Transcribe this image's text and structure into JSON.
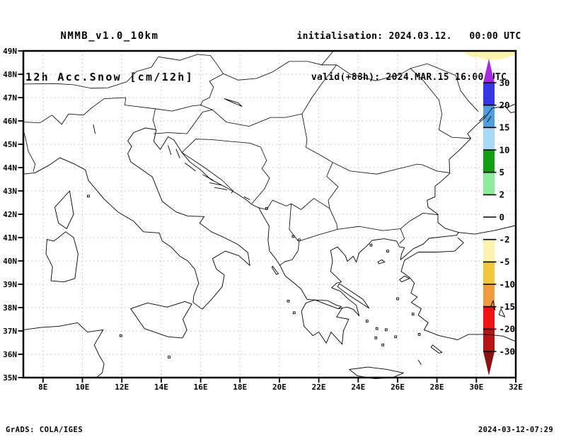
{
  "header": {
    "model_line": "NMMB_v1.0_10km",
    "product_line": "12h Acc.Snow [cm/12h]",
    "init_line": "initialisation: 2024.03.12.   00:00 UTC",
    "valid_line": "valid(+88h): 2024.MAR.15 16:00 UTC"
  },
  "map_axes": {
    "lat_labels": [
      "49N",
      "48N",
      "47N",
      "46N",
      "45N",
      "44N",
      "43N",
      "42N",
      "41N",
      "40N",
      "39N",
      "38N",
      "37N",
      "36N",
      "35N"
    ],
    "lon_labels": [
      "8E",
      "10E",
      "12E",
      "14E",
      "16E",
      "18E",
      "20E",
      "22E",
      "24E",
      "26E",
      "28E",
      "30E",
      "32E"
    ],
    "lat_range_deg": [
      35,
      49
    ],
    "lon_range_deg": [
      7,
      32
    ]
  },
  "map_style": {
    "grid_color": "#bdbdbd",
    "coast_color": "#000000",
    "frame_color": "#000000"
  },
  "colorbar": {
    "levels": [
      "30",
      "20",
      "15",
      "10",
      "5",
      "2",
      "0",
      "-2",
      "-5",
      "-10",
      "-15",
      "-20",
      "-30"
    ],
    "segment_colors": [
      "#3636e8",
      "#4f9fe0",
      "#a8d9f5",
      "#12a012",
      "#8cec9c",
      "#ffffff",
      "#ffffff",
      "#faf3b0",
      "#f1c83a",
      "#f29a3e",
      "#f31212",
      "#b81414"
    ],
    "arrow_top_color": "#a62ae0",
    "arrow_bottom_color": "#8c1212"
  },
  "overlay": {
    "description": "shaded accumulation band at top-right corner near 29E-32E, 48.6N-49N",
    "fill_color": "#faf3b0",
    "value_band": "-2 to -5 cm/12h"
  },
  "footer": {
    "left": "GrADS: COLA/IGES",
    "right": "2024-03-12-07:29"
  }
}
